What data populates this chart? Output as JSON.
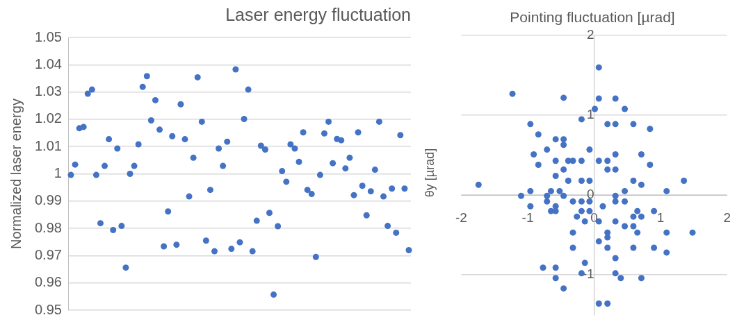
{
  "chart_data": [
    {
      "type": "scatter",
      "title": "Laser energy fluctuation",
      "ylabel": "Normalized laser energy",
      "color": "#4472c4",
      "marker": "circle",
      "grid": "y",
      "categories": [
        null,
        null,
        null,
        null,
        null,
        null,
        null,
        null,
        null,
        null,
        null,
        null,
        null,
        null,
        null,
        null,
        null,
        null,
        null,
        null,
        null,
        null,
        null,
        null,
        null,
        null,
        null,
        null,
        null,
        null,
        null,
        null,
        null,
        null,
        null,
        null,
        null,
        null,
        null,
        null,
        null,
        null,
        null,
        null,
        null,
        null,
        null,
        null,
        null,
        null,
        null,
        null,
        null,
        null,
        null,
        null,
        null,
        null,
        null,
        null,
        null,
        null,
        null,
        null,
        null,
        null,
        null,
        null,
        null,
        null,
        null,
        null,
        null,
        null,
        null,
        null,
        null,
        null,
        null,
        null,
        null
      ],
      "values": [
        0.9996,
        1.0034,
        1.0167,
        1.0172,
        1.0294,
        1.0309,
        0.9996,
        0.9819,
        1.0029,
        1.0127,
        0.9794,
        1.0093,
        0.9809,
        0.9656,
        1.0,
        1.0029,
        1.0108,
        1.0319,
        1.0358,
        1.0196,
        1.027,
        1.0162,
        0.9734,
        0.9862,
        1.0138,
        0.974,
        1.0255,
        1.0127,
        0.9917,
        1.0059,
        1.0354,
        1.0191,
        0.9755,
        0.9941,
        0.9716,
        1.0093,
        1.0029,
        1.0118,
        0.9725,
        1.0383,
        0.9749,
        1.0201,
        1.0309,
        0.9716,
        0.9828,
        1.0103,
        1.0089,
        0.9857,
        0.9557,
        0.9808,
        1.001,
        0.9971,
        1.0108,
        1.0093,
        1.0044,
        1.0152,
        0.9941,
        0.9926,
        0.9695,
        0.9996,
        1.0148,
        1.0191,
        1.0039,
        1.0128,
        1.0123,
        1.002,
        1.0059,
        0.9922,
        1.0152,
        0.9956,
        0.9848,
        0.9936,
        1.0015,
        1.0191,
        0.9917,
        0.9809,
        0.9946,
        0.9784,
        1.0142,
        0.9946,
        0.972
      ],
      "ylim": [
        0.95,
        1.05
      ],
      "yticks": [
        0.95,
        0.96,
        0.97,
        0.98,
        0.99,
        1,
        1.01,
        1.02,
        1.03,
        1.04,
        1.05
      ]
    },
    {
      "type": "scatter",
      "title": "Pointing fluctuation [µrad]",
      "ylabel": "θy [µrad]",
      "color": "#4472c4",
      "marker": "circle",
      "grid": "y",
      "x": [
        -1.23,
        -1.74,
        -0.46,
        -0.19,
        -0.96,
        -0.84,
        -0.58,
        -0.46,
        -0.46,
        -0.71,
        -0.91,
        -0.58,
        -0.39,
        -0.32,
        -0.19,
        -0.84,
        -0.46,
        -0.58,
        -0.39,
        -0.19,
        -1.1,
        -0.96,
        -0.71,
        -0.65,
        -0.52,
        -0.46,
        -0.71,
        -0.96,
        -0.58,
        -0.65,
        -0.58,
        -0.32,
        -0.19,
        -0.26,
        -0.19,
        -0.32,
        -0.32,
        -0.77,
        -0.58,
        -0.58,
        -0.46,
        -0.14,
        -0.19,
        -0.14,
        0.07,
        0.07,
        0.32,
        0.01,
        0.46,
        0.2,
        0.32,
        0.59,
        0.84,
        -0.07,
        0.32,
        0.71,
        0.07,
        0.2,
        0.84,
        0.2,
        0.32,
        -0.07,
        0.59,
        1.35,
        0.71,
        0.46,
        1.09,
        0.32,
        -0.07,
        0.32,
        0.46,
        0.13,
        -0.07,
        0.65,
        0.9,
        0.59,
        0.71,
        0.07,
        0.32,
        0.46,
        0.59,
        0.2,
        0.65,
        1.09,
        1.48,
        0.2,
        0.07,
        0.2,
        0.59,
        0.9,
        1.09,
        0.32,
        0.32,
        0.4,
        0.71,
        0.07,
        0.2
      ],
      "values": [
        1.27,
        0.13,
        1.22,
        0.95,
        0.89,
        0.76,
        0.7,
        0.7,
        0.63,
        0.57,
        0.51,
        0.43,
        0.43,
        0.43,
        0.43,
        0.38,
        0.32,
        0.24,
        0.18,
        0.18,
        -0.01,
        0.05,
        -0.01,
        0.05,
        0.05,
        -0.01,
        -0.08,
        -0.14,
        -0.14,
        -0.2,
        -0.2,
        -0.08,
        -0.08,
        -0.27,
        -0.2,
        -0.47,
        -0.66,
        -0.91,
        -0.91,
        -1.04,
        -1.17,
        -0.85,
        -0.98,
        -0.33,
        1.6,
        1.21,
        1.21,
        1.08,
        1.08,
        0.89,
        0.89,
        0.89,
        0.83,
        0.57,
        0.51,
        0.51,
        0.43,
        0.43,
        0.38,
        0.32,
        0.32,
        0.18,
        0.18,
        0.18,
        0.13,
        0.05,
        0.05,
        -0.01,
        -0.08,
        -0.08,
        -0.08,
        -0.14,
        -0.2,
        -0.2,
        -0.2,
        -0.27,
        -0.27,
        -0.33,
        -0.33,
        -0.39,
        -0.39,
        -0.47,
        -0.47,
        -0.47,
        -0.47,
        -0.53,
        -0.58,
        -0.66,
        -0.66,
        -0.66,
        -0.72,
        -0.79,
        -0.98,
        -1.04,
        -1.04,
        -1.36,
        -1.36
      ],
      "xlim": [
        -2,
        2
      ],
      "xticks": [
        -2,
        -1,
        0,
        1,
        2
      ],
      "ylim": [
        -1.5,
        2
      ],
      "yticks": [
        -1,
        0,
        1,
        2
      ]
    }
  ]
}
